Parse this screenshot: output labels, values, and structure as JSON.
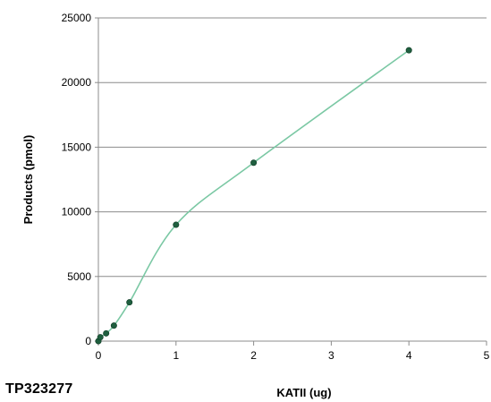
{
  "chart_data": {
    "type": "scatter",
    "title": "",
    "xlabel": "KATII (ug)",
    "ylabel": "Products (pmol)",
    "xlim": [
      0,
      5
    ],
    "ylim": [
      0,
      25000
    ],
    "x_ticks": [
      "0",
      "1",
      "2",
      "3",
      "4",
      "5"
    ],
    "y_ticks": [
      "0",
      "5000",
      "10000",
      "15000",
      "20000",
      "25000"
    ],
    "grid": "horizontal",
    "smoothed_line": true,
    "series": [
      {
        "color": "#7bc8a4",
        "marker_color": "#1f5f3f",
        "points": [
          {
            "x": 0,
            "y": 0
          },
          {
            "x": 0.025,
            "y": 300
          },
          {
            "x": 0.1,
            "y": 600
          },
          {
            "x": 0.2,
            "y": 1200
          },
          {
            "x": 0.4,
            "y": 3000
          },
          {
            "x": 1,
            "y": 9000
          },
          {
            "x": 2,
            "y": 13800
          },
          {
            "x": 4,
            "y": 22500
          }
        ]
      }
    ]
  },
  "footer": {
    "product_id": "TP323277"
  }
}
